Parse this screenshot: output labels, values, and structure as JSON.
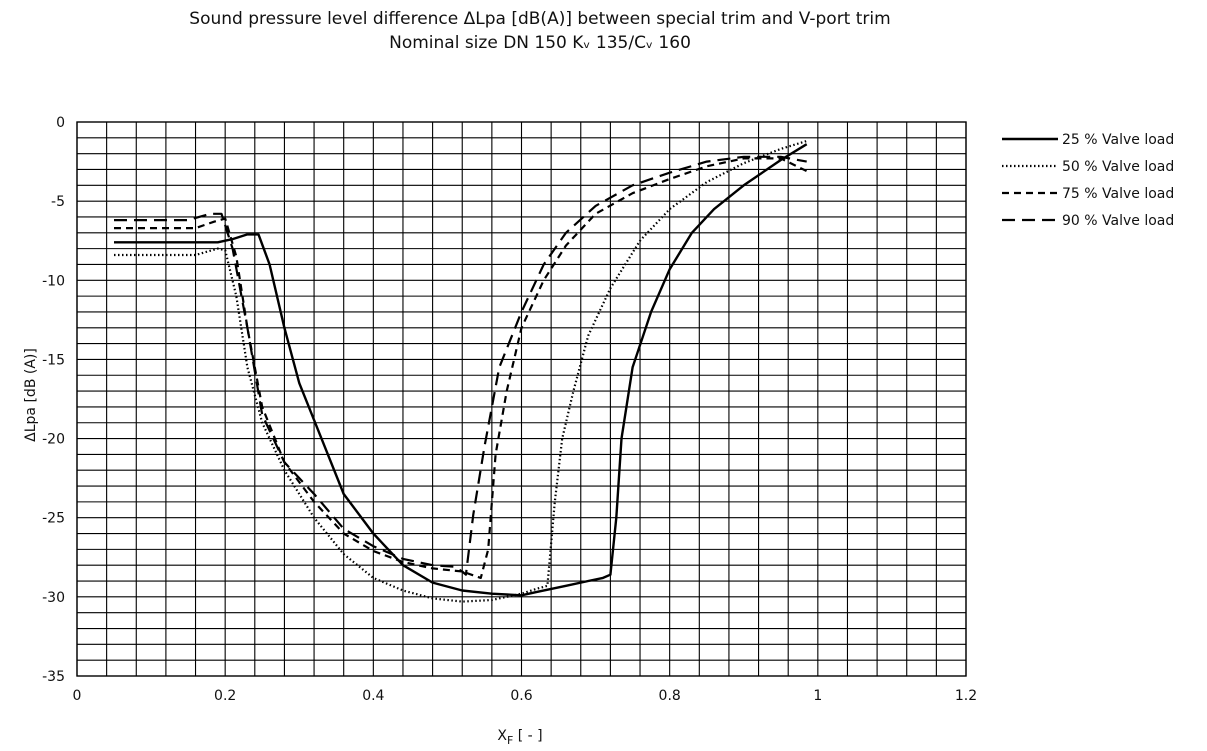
{
  "chart_data": {
    "type": "line",
    "title": "Sound pressure level difference ΔLpa [dB(A)] between special trim and V-port trim",
    "subtitle": "Nominal size DN 150 Kᵥ 135/Cᵥ 160",
    "xlabel": "X",
    "xlabel_sub": "F",
    "xlabel_suffix": " [ - ]",
    "ylabel": "ΔLpa [dB (A)]",
    "xlim": [
      0,
      1.2
    ],
    "ylim": [
      -35,
      0
    ],
    "xticks": [
      0,
      0.2,
      0.4,
      0.6,
      0.8,
      1,
      1.2
    ],
    "yticks": [
      0,
      -5,
      -10,
      -15,
      -20,
      -25,
      -30,
      -35
    ],
    "xtick_labels": [
      "0",
      "0.2",
      "0.4",
      "0.6",
      "0.8",
      "1",
      "1.2"
    ],
    "ytick_labels": [
      "0",
      "-5",
      "-10",
      "-15",
      "-20",
      "-25",
      "-30",
      "-35"
    ],
    "grid": true,
    "grid_minor_x": 0.04,
    "grid_minor_y": 1,
    "legend_position": "right",
    "series": [
      {
        "name": "25 % Valve load",
        "style": "solid",
        "points": [
          [
            0.05,
            -7.6
          ],
          [
            0.19,
            -7.6
          ],
          [
            0.21,
            -7.4
          ],
          [
            0.23,
            -7.1
          ],
          [
            0.245,
            -7.1
          ],
          [
            0.26,
            -9
          ],
          [
            0.28,
            -13
          ],
          [
            0.3,
            -16.5
          ],
          [
            0.33,
            -20
          ],
          [
            0.36,
            -23.5
          ],
          [
            0.4,
            -26
          ],
          [
            0.44,
            -28
          ],
          [
            0.48,
            -29.1
          ],
          [
            0.52,
            -29.6
          ],
          [
            0.56,
            -29.8
          ],
          [
            0.6,
            -29.9
          ],
          [
            0.62,
            -29.7
          ],
          [
            0.66,
            -29.3
          ],
          [
            0.69,
            -29
          ],
          [
            0.71,
            -28.8
          ],
          [
            0.72,
            -28.6
          ],
          [
            0.728,
            -25
          ],
          [
            0.735,
            -20
          ],
          [
            0.75,
            -15.5
          ],
          [
            0.775,
            -12
          ],
          [
            0.8,
            -9.3
          ],
          [
            0.83,
            -7
          ],
          [
            0.86,
            -5.5
          ],
          [
            0.9,
            -4
          ],
          [
            0.95,
            -2.4
          ],
          [
            0.985,
            -1.4
          ]
        ]
      },
      {
        "name": "50 % Valve load",
        "style": "dotted",
        "points": [
          [
            0.05,
            -8.4
          ],
          [
            0.16,
            -8.4
          ],
          [
            0.19,
            -8
          ],
          [
            0.2,
            -8.1
          ],
          [
            0.215,
            -11
          ],
          [
            0.23,
            -15.5
          ],
          [
            0.25,
            -19
          ],
          [
            0.28,
            -22
          ],
          [
            0.32,
            -25
          ],
          [
            0.36,
            -27.3
          ],
          [
            0.4,
            -28.8
          ],
          [
            0.44,
            -29.6
          ],
          [
            0.48,
            -30.1
          ],
          [
            0.52,
            -30.3
          ],
          [
            0.56,
            -30.2
          ],
          [
            0.6,
            -29.8
          ],
          [
            0.62,
            -29.5
          ],
          [
            0.635,
            -29.3
          ],
          [
            0.645,
            -24
          ],
          [
            0.655,
            -20
          ],
          [
            0.67,
            -17
          ],
          [
            0.69,
            -13.5
          ],
          [
            0.72,
            -10.5
          ],
          [
            0.76,
            -7.5
          ],
          [
            0.8,
            -5.5
          ],
          [
            0.85,
            -3.8
          ],
          [
            0.9,
            -2.6
          ],
          [
            0.95,
            -1.7
          ],
          [
            0.985,
            -1.2
          ]
        ]
      },
      {
        "name": "75 % Valve load",
        "style": "dashed",
        "points": [
          [
            0.05,
            -6.7
          ],
          [
            0.16,
            -6.7
          ],
          [
            0.185,
            -6.3
          ],
          [
            0.2,
            -6.1
          ],
          [
            0.215,
            -8.5
          ],
          [
            0.23,
            -13
          ],
          [
            0.25,
            -18
          ],
          [
            0.28,
            -21.5
          ],
          [
            0.32,
            -24
          ],
          [
            0.36,
            -26
          ],
          [
            0.4,
            -27.1
          ],
          [
            0.44,
            -27.8
          ],
          [
            0.48,
            -28.2
          ],
          [
            0.52,
            -28.4
          ],
          [
            0.545,
            -28.8
          ],
          [
            0.555,
            -27
          ],
          [
            0.565,
            -21
          ],
          [
            0.58,
            -17
          ],
          [
            0.6,
            -13
          ],
          [
            0.63,
            -10
          ],
          [
            0.66,
            -7.8
          ],
          [
            0.7,
            -5.8
          ],
          [
            0.75,
            -4.5
          ],
          [
            0.8,
            -3.6
          ],
          [
            0.85,
            -2.8
          ],
          [
            0.9,
            -2.3
          ],
          [
            0.95,
            -2.3
          ],
          [
            0.985,
            -3.1
          ]
        ]
      },
      {
        "name": "90 % Valve load",
        "style": "longdash",
        "points": [
          [
            0.05,
            -6.2
          ],
          [
            0.15,
            -6.2
          ],
          [
            0.18,
            -5.8
          ],
          [
            0.195,
            -5.8
          ],
          [
            0.21,
            -8
          ],
          [
            0.23,
            -13
          ],
          [
            0.25,
            -18.5
          ],
          [
            0.28,
            -21.5
          ],
          [
            0.32,
            -23.5
          ],
          [
            0.36,
            -25.7
          ],
          [
            0.4,
            -26.8
          ],
          [
            0.44,
            -27.6
          ],
          [
            0.48,
            -28
          ],
          [
            0.51,
            -28.1
          ],
          [
            0.52,
            -28.4
          ],
          [
            0.525,
            -28.6
          ],
          [
            0.535,
            -24.8
          ],
          [
            0.55,
            -20.5
          ],
          [
            0.57,
            -15.5
          ],
          [
            0.6,
            -12
          ],
          [
            0.63,
            -9
          ],
          [
            0.66,
            -7
          ],
          [
            0.7,
            -5.3
          ],
          [
            0.75,
            -4
          ],
          [
            0.8,
            -3.2
          ],
          [
            0.85,
            -2.5
          ],
          [
            0.9,
            -2.2
          ],
          [
            0.95,
            -2.2
          ],
          [
            0.985,
            -2.5
          ]
        ]
      }
    ]
  }
}
